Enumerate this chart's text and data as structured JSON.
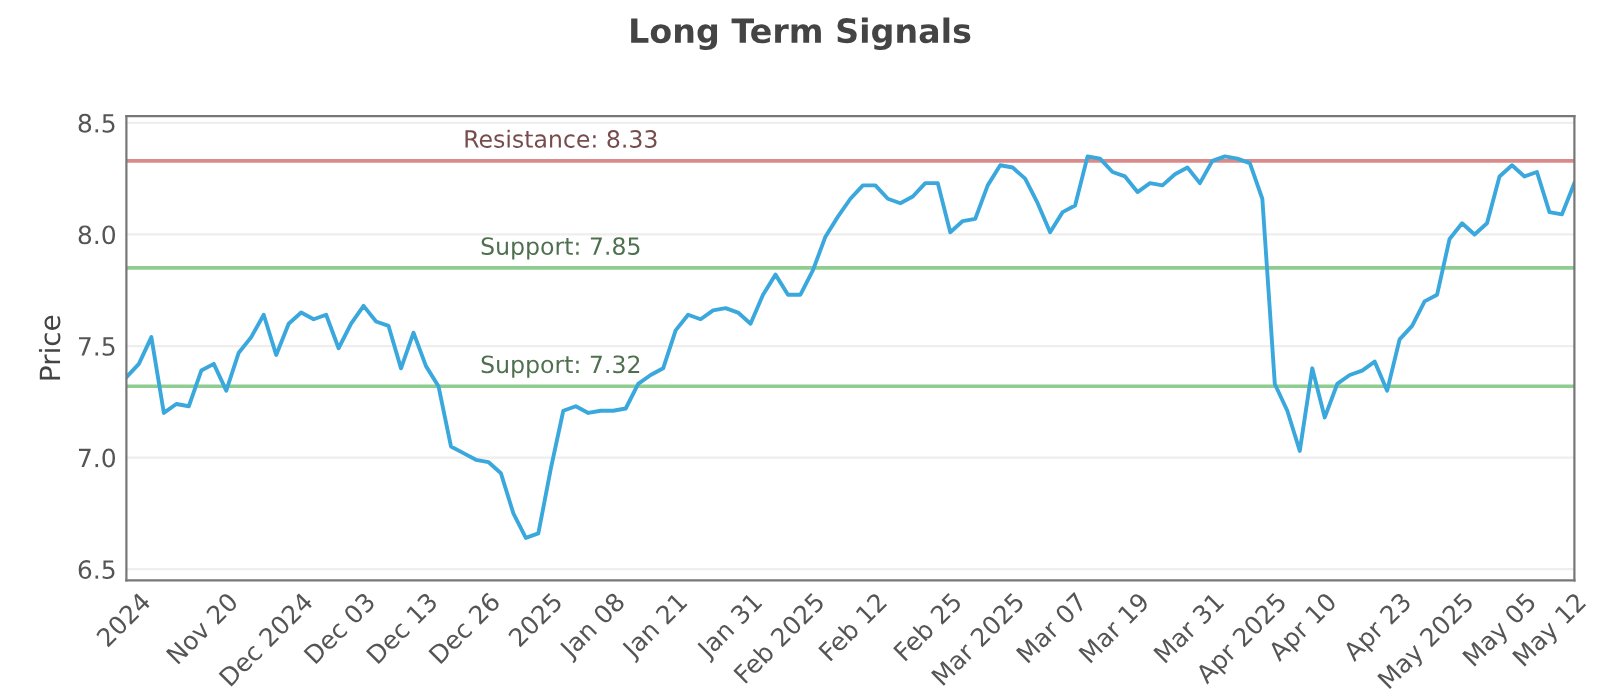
{
  "chart_data": {
    "type": "line",
    "title": "Long Term Signals",
    "ylabel": "Price",
    "categories": [
      null,
      "2024",
      null,
      null,
      null,
      null,
      null,
      null,
      "Nov 20",
      null,
      null,
      null,
      null,
      null,
      "Dec 2024",
      null,
      null,
      null,
      null,
      "Dec 03",
      null,
      null,
      null,
      null,
      "Dec 13",
      null,
      null,
      null,
      null,
      "Dec 26",
      null,
      null,
      null,
      null,
      "2025",
      null,
      null,
      null,
      null,
      "Jan 08",
      null,
      null,
      null,
      null,
      "Jan 21",
      null,
      null,
      null,
      null,
      null,
      "Jan 31",
      null,
      null,
      null,
      null,
      "Feb 2025",
      null,
      null,
      null,
      null,
      "Feb 12",
      null,
      null,
      null,
      null,
      null,
      "Feb 25",
      null,
      null,
      null,
      null,
      "Mar 2025",
      null,
      null,
      null,
      null,
      "Mar 07",
      null,
      null,
      null,
      null,
      "Mar 19",
      null,
      null,
      null,
      null,
      null,
      "Mar 31",
      null,
      null,
      null,
      null,
      "Apr 2025",
      null,
      null,
      null,
      "Apr 10",
      null,
      null,
      null,
      null,
      null,
      "Apr 23",
      null,
      null,
      null,
      null,
      "May 2025",
      null,
      null,
      null,
      null,
      "May 05",
      null,
      null,
      null,
      "May 12"
    ],
    "series": [
      {
        "color": "#3aa8dc",
        "values": [
          7.36,
          7.42,
          7.54,
          7.2,
          7.24,
          7.23,
          7.39,
          7.42,
          7.3,
          7.47,
          7.54,
          7.64,
          7.46,
          7.6,
          7.65,
          7.62,
          7.64,
          7.49,
          7.6,
          7.68,
          7.61,
          7.59,
          7.4,
          7.56,
          7.41,
          7.32,
          7.05,
          7.02,
          6.99,
          6.98,
          6.93,
          6.75,
          6.64,
          6.66,
          6.95,
          7.21,
          7.23,
          7.2,
          7.21,
          7.21,
          7.22,
          7.33,
          7.37,
          7.4,
          7.57,
          7.64,
          7.62,
          7.66,
          7.67,
          7.65,
          7.6,
          7.73,
          7.82,
          7.73,
          7.73,
          7.84,
          7.99,
          8.08,
          8.16,
          8.22,
          8.22,
          8.16,
          8.14,
          8.17,
          8.23,
          8.23,
          8.01,
          8.06,
          8.07,
          8.22,
          8.31,
          8.3,
          8.25,
          8.14,
          8.01,
          8.1,
          8.13,
          8.35,
          8.34,
          8.28,
          8.26,
          8.19,
          8.23,
          8.22,
          8.27,
          8.3,
          8.23,
          8.33,
          8.35,
          8.34,
          8.32,
          8.16,
          7.33,
          7.21,
          7.03,
          7.4,
          7.18,
          7.33,
          7.37,
          7.39,
          7.43,
          7.3,
          7.53,
          7.59,
          7.7,
          7.73,
          7.98,
          8.05,
          8.0,
          8.05,
          8.26,
          8.31,
          8.26,
          8.28,
          8.1,
          8.09,
          8.23
        ]
      }
    ],
    "ylim": [
      6.45,
      8.53
    ],
    "yticks": [
      6.5,
      {
        "value": 7,
        "label": "7.0"
      },
      7.5,
      {
        "value": 8,
        "label": "8.0"
      },
      8.5
    ],
    "grid": "y",
    "ref_lines": [
      {
        "axis": "y",
        "value": 8.33,
        "label": "Resistance: 8.33",
        "color": "#d98a8a"
      },
      {
        "axis": "y",
        "value": 7.85,
        "label": "Support: 7.85",
        "color": "#8fcc8f"
      },
      {
        "axis": "y",
        "value": 7.32,
        "label": "Support: 7.32",
        "color": "#8fcc8f"
      }
    ]
  }
}
